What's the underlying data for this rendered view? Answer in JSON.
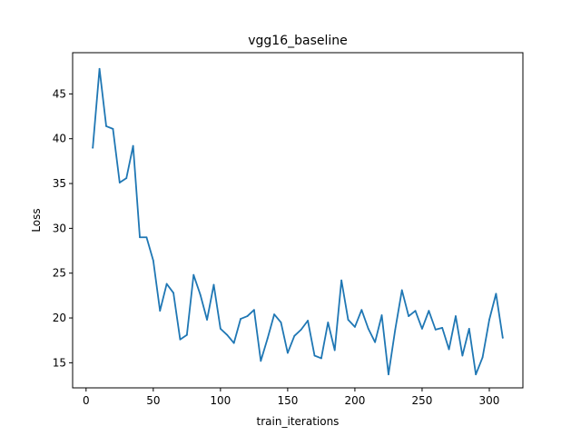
{
  "chart_data": {
    "type": "line",
    "title": "vgg16_baseline",
    "xlabel": "train_iterations",
    "ylabel": "Loss",
    "xlim": [
      -10,
      325
    ],
    "ylim": [
      12.2,
      49.6
    ],
    "xticks": [
      0,
      50,
      100,
      150,
      200,
      250,
      300
    ],
    "yticks": [
      15,
      20,
      25,
      30,
      35,
      40,
      45
    ],
    "grid": false,
    "color": "#1f77b4",
    "series": [
      {
        "x": [
          5,
          10,
          15,
          20,
          25,
          30,
          35,
          40,
          45,
          50,
          55,
          60,
          65,
          70,
          75,
          80,
          85,
          90,
          95,
          100,
          105,
          110,
          115,
          120,
          125,
          130,
          135,
          140,
          145,
          150,
          155,
          160,
          165,
          170,
          175,
          180,
          185,
          190,
          195,
          200,
          205,
          210,
          215,
          220,
          225,
          230,
          235,
          240,
          245,
          250,
          255,
          260,
          265,
          270,
          275,
          280,
          285,
          290,
          295,
          300,
          305,
          310
        ],
        "values": [
          39.0,
          47.8,
          41.4,
          41.1,
          35.1,
          35.6,
          39.2,
          29.0,
          29.0,
          26.4,
          20.8,
          23.8,
          22.8,
          17.6,
          18.1,
          24.8,
          22.6,
          19.8,
          23.7,
          18.8,
          18.1,
          17.2,
          19.9,
          20.2,
          20.9,
          15.2,
          17.7,
          20.4,
          19.5,
          16.1,
          18.0,
          18.7,
          19.7,
          15.8,
          15.5,
          19.5,
          16.4,
          24.2,
          19.8,
          19.0,
          20.9,
          18.8,
          17.3,
          20.3,
          13.7,
          18.7,
          23.1,
          20.2,
          20.8,
          18.8,
          20.8,
          18.7,
          18.9,
          16.5,
          20.2,
          15.8,
          18.8,
          13.7,
          15.6,
          19.8,
          22.7,
          17.8
        ]
      }
    ]
  }
}
